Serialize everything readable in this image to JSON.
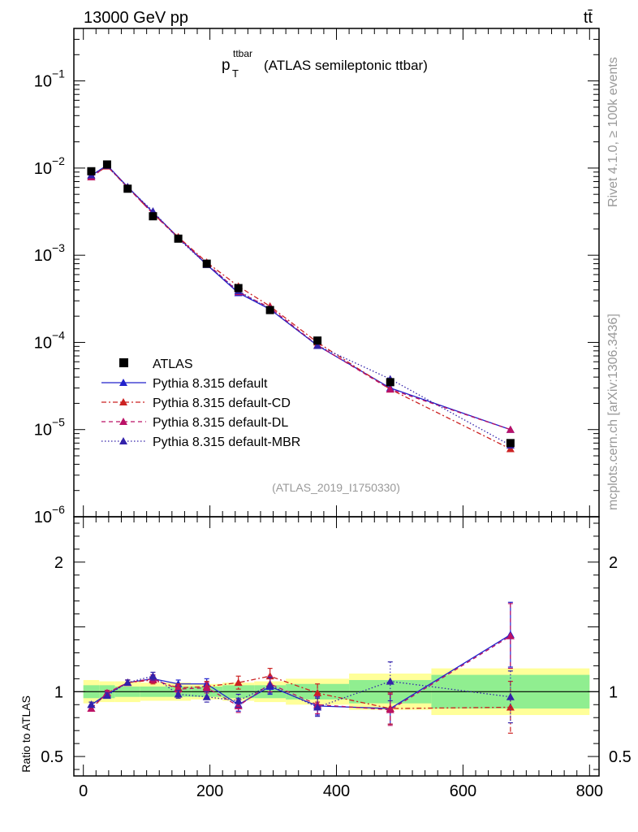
{
  "header": {
    "left": "13000 GeV pp",
    "right": "tt̄"
  },
  "side_labels": {
    "rivet": "Rivet 4.1.0, ≥ 100k events",
    "mcplots": "mcplots.cern.ch [arXiv:1306.3436]"
  },
  "chart_data": {
    "type": "scatter",
    "title": {
      "main": "p",
      "sub": "T",
      "sup": "ttbar",
      "rest": "(ATLAS semileptonic ttbar)"
    },
    "analysis": "(ATLAS_2019_I1750330)",
    "upper": {
      "yscale": "log",
      "ylim": [
        1e-06,
        0.4
      ],
      "ytick_labels": [
        {
          "value": 1e-06,
          "base": "10",
          "exp": "−6"
        },
        {
          "value": 1e-05,
          "base": "10",
          "exp": "−5"
        },
        {
          "value": 0.0001,
          "base": "10",
          "exp": "−4"
        },
        {
          "value": 0.001,
          "base": "10",
          "exp": "−3"
        },
        {
          "value": 0.01,
          "base": "10",
          "exp": "−2"
        },
        {
          "value": 0.1,
          "base": "10",
          "exp": "−1"
        }
      ]
    },
    "lower": {
      "ylabel": "Ratio to ATLAS",
      "ylim": [
        0.35,
        2.35
      ],
      "ytick_labels": [
        {
          "value": 0.5,
          "text": "0.5"
        },
        {
          "value": 1,
          "text": "1"
        },
        {
          "value": 2,
          "text": "2"
        }
      ]
    },
    "xlim": [
      -15,
      815
    ],
    "xtick_labels": [
      {
        "value": 0,
        "text": "0"
      },
      {
        "value": 200,
        "text": "200"
      },
      {
        "value": 400,
        "text": "400"
      },
      {
        "value": 600,
        "text": "600"
      },
      {
        "value": 800,
        "text": "800"
      }
    ],
    "bins": [
      [
        0,
        25
      ],
      [
        25,
        50
      ],
      [
        50,
        90
      ],
      [
        90,
        130
      ],
      [
        130,
        170
      ],
      [
        170,
        220
      ],
      [
        220,
        270
      ],
      [
        270,
        320
      ],
      [
        320,
        420
      ],
      [
        420,
        550
      ],
      [
        550,
        800
      ]
    ],
    "x": [
      12.5,
      37.5,
      70,
      110,
      150,
      195,
      245,
      295,
      370,
      485,
      675
    ],
    "data": {
      "name": "ATLAS",
      "values": [
        0.0092,
        0.011,
        0.0058,
        0.0028,
        0.00155,
        0.0008,
        0.00042,
        0.000235,
        0.000105,
        3.5e-05,
        7e-06
      ],
      "band_inner": [
        0.05,
        0.05,
        0.04,
        0.04,
        0.04,
        0.04,
        0.05,
        0.05,
        0.06,
        0.09,
        0.13
      ],
      "band_outer": [
        0.09,
        0.08,
        0.08,
        0.07,
        0.07,
        0.06,
        0.07,
        0.08,
        0.1,
        0.14,
        0.18
      ]
    },
    "series": [
      {
        "name": "Pythia 8.315 default",
        "color": "#2222cc",
        "dash": "solid",
        "values": [
          0.0082,
          0.0108,
          0.0061,
          0.0031,
          0.0016,
          0.00078,
          0.00037,
          0.00024,
          9.2e-05,
          3e-05,
          1e-05
        ],
        "ratio": [
          0.9,
          0.98,
          1.07,
          1.1,
          1.06,
          1.06,
          0.9,
          1.04,
          0.89,
          0.87,
          1.44
        ],
        "ratio_err": [
          0.02,
          0.02,
          0.02,
          0.03,
          0.03,
          0.04,
          0.05,
          0.06,
          0.07,
          0.12,
          0.25
        ]
      },
      {
        "name": "Pythia 8.315 default-CD",
        "color": "#cc2222",
        "dash": "6,3,2,3",
        "values": [
          0.0079,
          0.0105,
          0.006,
          0.003,
          0.00162,
          0.00083,
          0.00044,
          0.00026,
          0.0001,
          2.9e-05,
          6e-06
        ],
        "ratio": [
          0.87,
          0.99,
          1.07,
          1.09,
          1.03,
          1.04,
          1.07,
          1.12,
          0.99,
          0.87,
          0.88
        ],
        "ratio_err": [
          0.02,
          0.02,
          0.02,
          0.03,
          0.03,
          0.04,
          0.05,
          0.06,
          0.07,
          0.12,
          0.2
        ]
      },
      {
        "name": "Pythia 8.315 default-DL",
        "color": "#bb1166",
        "dash": "5,4",
        "values": [
          0.0079,
          0.0106,
          0.006,
          0.003,
          0.00158,
          0.00081,
          0.00038,
          0.00025,
          9.3e-05,
          2.9e-05,
          1e-05
        ],
        "ratio": [
          0.87,
          0.99,
          1.07,
          1.1,
          1.02,
          1.03,
          0.89,
          1.06,
          0.9,
          0.86,
          1.43
        ],
        "ratio_err": [
          0.02,
          0.02,
          0.02,
          0.03,
          0.03,
          0.04,
          0.05,
          0.06,
          0.07,
          0.12,
          0.25
        ]
      },
      {
        "name": "Pythia 8.315 default-MBR",
        "color": "#3322aa",
        "dash": "1.5,2.5",
        "values": [
          0.0083,
          0.0107,
          0.006,
          0.0032,
          0.00155,
          0.00078,
          0.00039,
          0.00024,
          9.2e-05,
          3.8e-05,
          6.6e-06
        ],
        "ratio": [
          0.9,
          0.97,
          1.07,
          1.12,
          0.98,
          0.96,
          0.93,
          1.05,
          0.88,
          1.08,
          0.96
        ],
        "ratio_err": [
          0.02,
          0.02,
          0.02,
          0.03,
          0.03,
          0.04,
          0.05,
          0.06,
          0.07,
          0.15,
          0.2
        ]
      }
    ],
    "colors": {
      "band_inner": "#90ee90",
      "band_outer": "#ffff99",
      "frame": "#000000"
    }
  }
}
